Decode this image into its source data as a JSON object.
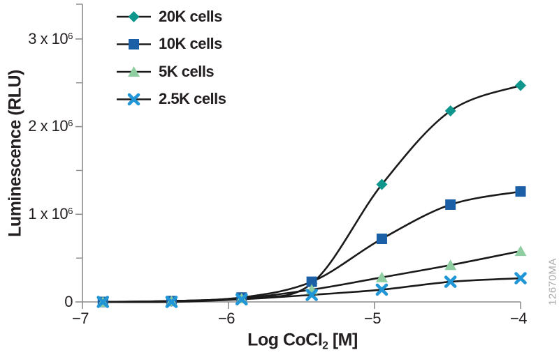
{
  "figure": {
    "watermark": "12670MA",
    "background_color": "#ffffff",
    "text_color": "#231f20"
  },
  "chart_data": {
    "type": "line",
    "title": "",
    "xlabel": "Log CoCl₂ [M]",
    "xlabel_parts": {
      "pre": "Log CoCl",
      "sub": "2",
      "post": " [M]"
    },
    "ylabel": "Luminescence (RLU)",
    "xlim": [
      -7,
      -4
    ],
    "ylim": [
      0,
      3400000
    ],
    "grid": false,
    "legend_position": "top-left-inside",
    "axis_color": "#8c8c8c",
    "line_color": "#1a1a1a",
    "x": [
      -6.86,
      -6.39,
      -5.91,
      -5.43,
      -4.95,
      -4.48,
      -4.0
    ],
    "series": [
      {
        "name": "20K cells",
        "marker": "diamond",
        "color": "#0E968C",
        "values": [
          0,
          10000,
          50000,
          210000,
          1340000,
          2180000,
          2470000
        ]
      },
      {
        "name": "10K cells",
        "marker": "square",
        "color": "#1B5FA6",
        "values": [
          0,
          10000,
          50000,
          230000,
          720000,
          1110000,
          1260000
        ]
      },
      {
        "name": "5K cells",
        "marker": "triangle",
        "color": "#8FCEA0",
        "values": [
          0,
          10000,
          40000,
          140000,
          280000,
          420000,
          580000
        ]
      },
      {
        "name": "2.5K cells",
        "marker": "x",
        "color": "#2196D6",
        "values": [
          0,
          0,
          30000,
          80000,
          140000,
          230000,
          270000
        ]
      }
    ],
    "x_ticks": [
      {
        "value": -7,
        "label": "−7"
      },
      {
        "value": -6,
        "label": "−6"
      },
      {
        "value": -5,
        "label": "−5"
      },
      {
        "value": -4,
        "label": "−4"
      }
    ],
    "y_ticks": [
      {
        "value": 0,
        "base": "0",
        "exp": "",
        "label": "0"
      },
      {
        "value": 1000000,
        "base": "1 x 10",
        "exp": "6",
        "label": "1 x 10⁶"
      },
      {
        "value": 2000000,
        "base": "2 x 10",
        "exp": "6",
        "label": "2 x 10⁶"
      },
      {
        "value": 3000000,
        "base": "3 x 10",
        "exp": "6",
        "label": "3 x 10⁶"
      }
    ],
    "y_minor_ticks": [
      500000,
      1500000,
      2500000
    ]
  }
}
